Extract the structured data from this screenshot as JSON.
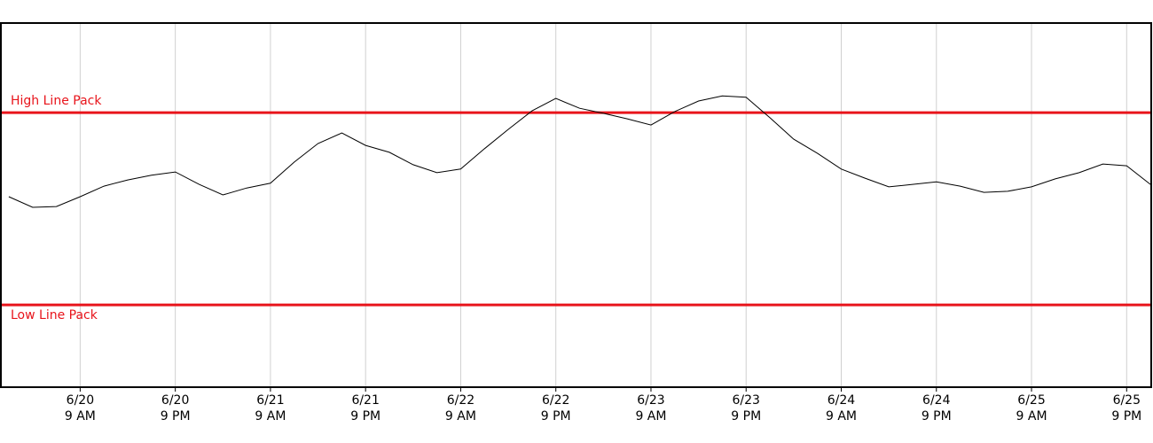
{
  "chart_data": {
    "type": "line",
    "x": [
      0,
      3,
      6,
      9,
      12,
      15,
      18,
      21,
      24,
      27,
      30,
      33,
      36,
      39,
      42,
      45,
      48,
      51,
      54,
      57,
      60,
      63,
      66,
      69,
      72,
      75,
      78,
      81,
      84,
      87,
      90,
      93,
      96,
      99,
      102,
      105,
      108,
      111,
      114,
      117,
      120,
      123,
      126,
      129,
      132,
      135,
      138,
      141,
      144
    ],
    "series": [
      {
        "color": "#000000",
        "values": [
          52.3,
          49.4,
          49.6,
          52.3,
          55.2,
          56.9,
          58.2,
          59.1,
          55.7,
          52.8,
          54.7,
          56.0,
          61.8,
          66.9,
          69.8,
          66.4,
          64.5,
          61.1,
          58.9,
          59.9,
          65.5,
          70.8,
          75.9,
          79.3,
          76.6,
          75.2,
          73.7,
          72.0,
          75.7,
          78.6,
          80.0,
          79.6,
          74.0,
          68.1,
          64.2,
          59.9,
          57.4,
          55.0,
          55.7,
          56.4,
          55.2,
          53.5,
          53.8,
          55.0,
          57.2,
          58.9,
          61.3,
          60.8,
          55.7
        ]
      }
    ],
    "reference_lines": [
      {
        "label": "High Line Pack",
        "value": 75.4,
        "color": "#e8141b",
        "label_position": "above"
      },
      {
        "label": "Low Line Pack",
        "value": 22.6,
        "color": "#e8141b",
        "label_position": "below"
      }
    ],
    "xlim": [
      -1,
      144.1
    ],
    "ylim": [
      0,
      100
    ],
    "xticks": [
      {
        "value": 9,
        "label": [
          "6/20",
          "9 AM"
        ]
      },
      {
        "value": 21,
        "label": [
          "6/20",
          "9 PM"
        ]
      },
      {
        "value": 33,
        "label": [
          "6/21",
          "9 AM"
        ]
      },
      {
        "value": 45,
        "label": [
          "6/21",
          "9 PM"
        ]
      },
      {
        "value": 57,
        "label": [
          "6/22",
          "9 AM"
        ]
      },
      {
        "value": 69,
        "label": [
          "6/22",
          "9 PM"
        ]
      },
      {
        "value": 81,
        "label": [
          "6/23",
          "9 AM"
        ]
      },
      {
        "value": 93,
        "label": [
          "6/23",
          "9 PM"
        ]
      },
      {
        "value": 105,
        "label": [
          "6/24",
          "9 AM"
        ]
      },
      {
        "value": 117,
        "label": [
          "6/24",
          "9 PM"
        ]
      },
      {
        "value": 129,
        "label": [
          "6/25",
          "9 AM"
        ]
      },
      {
        "value": 141,
        "label": [
          "6/25",
          "9 PM"
        ]
      }
    ],
    "grid": true
  }
}
